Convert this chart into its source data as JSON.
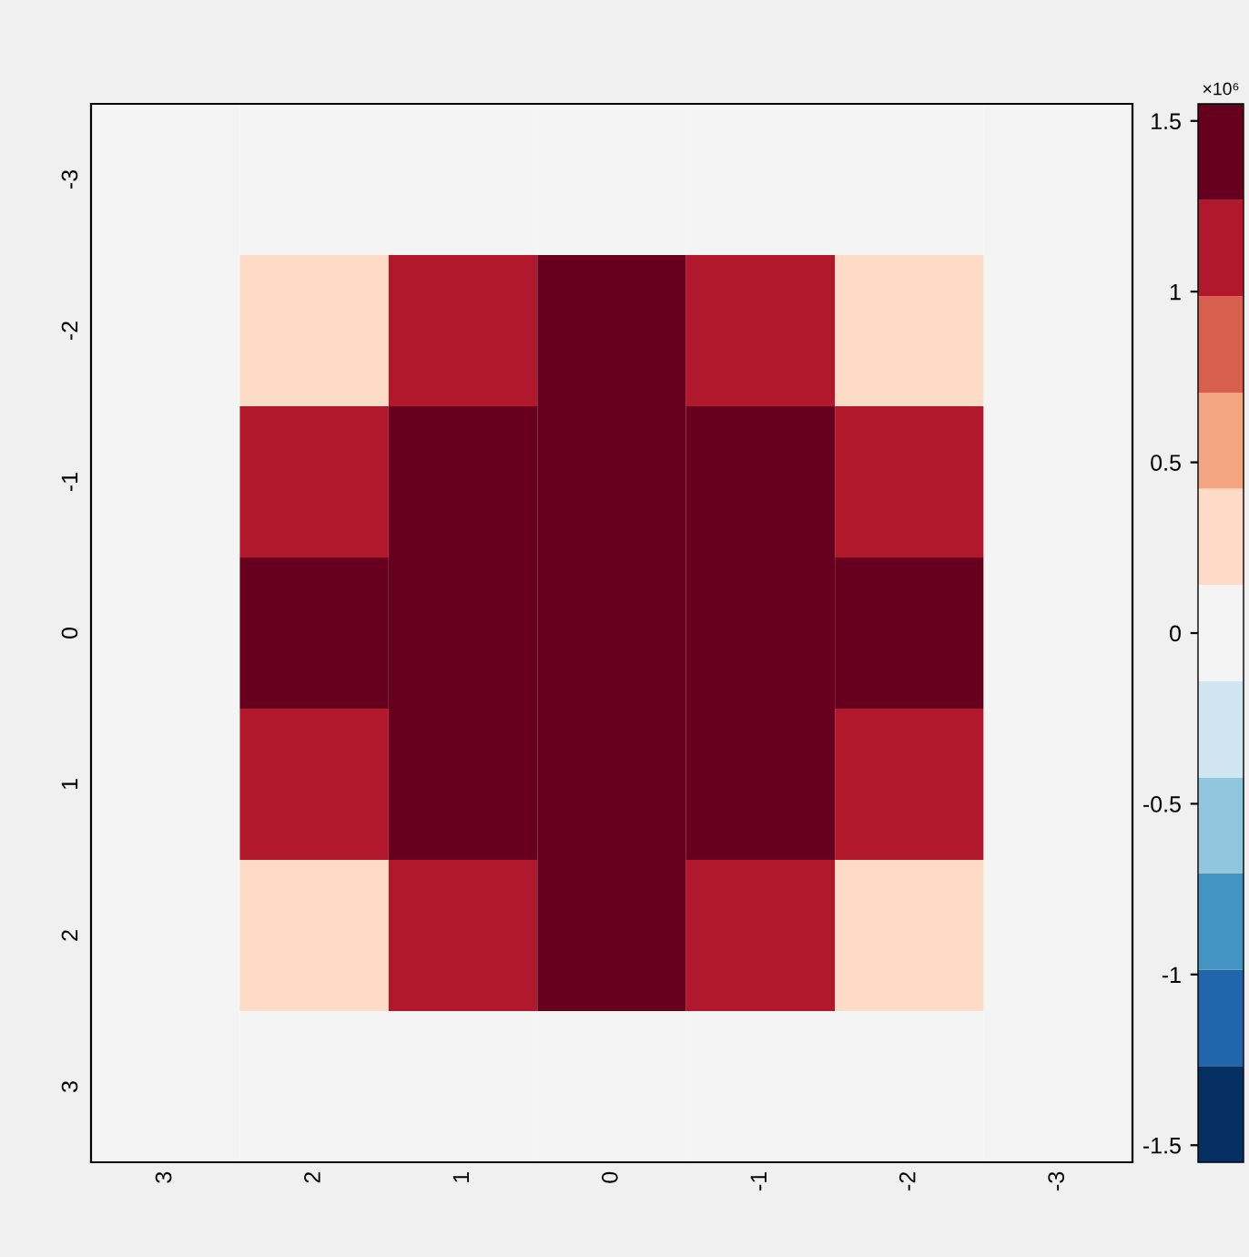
{
  "chart_data": {
    "type": "heatmap",
    "categories": [
      "3",
      "2",
      "1",
      "0",
      "-1",
      "-2",
      "-3"
    ],
    "y_categories": [
      "-3",
      "-2",
      "-1",
      "0",
      "1",
      "2",
      "3"
    ],
    "cells": [
      [
        0,
        0,
        0,
        0,
        0,
        0,
        0
      ],
      [
        0,
        0.3,
        1.2,
        1.5,
        1.2,
        0.3,
        0
      ],
      [
        0,
        1.2,
        1.5,
        1.5,
        1.5,
        1.2,
        0
      ],
      [
        0,
        1.5,
        1.5,
        1.5,
        1.5,
        1.5,
        0
      ],
      [
        0,
        1.2,
        1.5,
        1.5,
        1.5,
        1.2,
        0
      ],
      [
        0,
        0.3,
        1.2,
        1.5,
        1.2,
        0.3,
        0
      ],
      [
        0,
        0,
        0,
        0,
        0,
        0,
        0
      ]
    ],
    "colors": [
      "#053061",
      "#2166ac",
      "#4393c3",
      "#92c5de",
      "#d1e5f0",
      "#f4f4f4",
      "#fddbc7",
      "#f4a582",
      "#d6604d",
      "#b2182b",
      "#67001f"
    ],
    "clim": [
      -1.55,
      1.55
    ],
    "cticks": [
      -1.5,
      -1,
      -0.5,
      0,
      0.5,
      1,
      1.5
    ],
    "clabel": "×10⁶"
  }
}
